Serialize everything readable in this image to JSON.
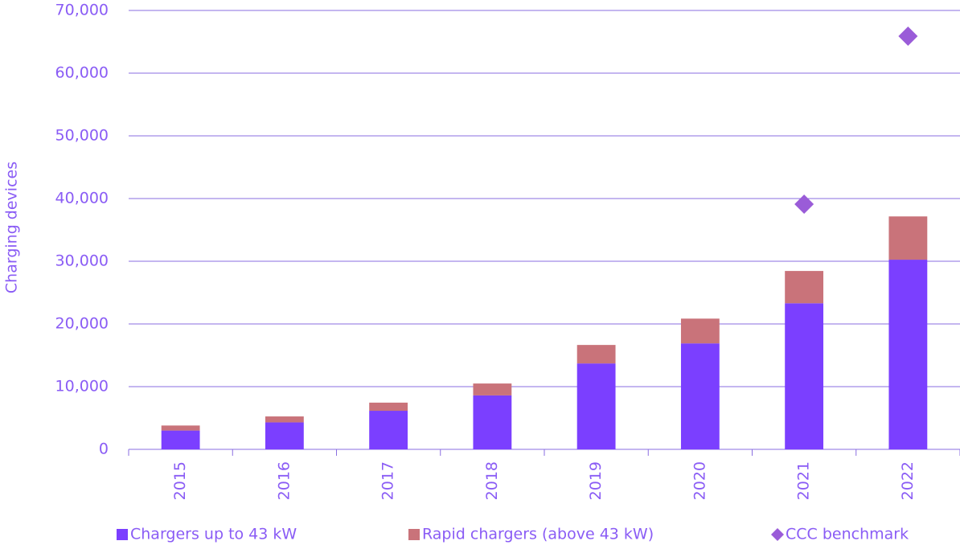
{
  "chart_data": {
    "type": "bar",
    "stacked": true,
    "y_label": "Charging devices",
    "categories": [
      "2015",
      "2016",
      "2017",
      "2018",
      "2019",
      "2020",
      "2021",
      "2022"
    ],
    "series": [
      {
        "name": "Chargers up to 43 kW",
        "type": "bar",
        "color": "#7b3fff",
        "values": [
          3000,
          4300,
          6150,
          8600,
          13700,
          16900,
          23300,
          30250
        ]
      },
      {
        "name": "Rapid chargers (above 43 kW)",
        "type": "bar",
        "color": "#c9737a",
        "values": [
          800,
          950,
          1300,
          1900,
          2950,
          3950,
          5150,
          6900
        ]
      },
      {
        "name": "CCC benchmark",
        "type": "scatter",
        "marker": "diamond",
        "color": "#9a5cd8",
        "values": [
          null,
          null,
          null,
          null,
          null,
          null,
          39100,
          65900
        ]
      }
    ],
    "ylim": [
      0,
      70000
    ],
    "yticks": [
      0,
      {
        "value": 10000,
        "label": "10,000"
      },
      {
        "value": 20000,
        "label": "20,000"
      },
      {
        "value": 30000,
        "label": "30,000"
      },
      {
        "value": 40000,
        "label": "40,000"
      },
      {
        "value": 50000,
        "label": "50,000"
      },
      {
        "value": 60000,
        "label": "60,000"
      },
      {
        "value": 70000,
        "label": "70,000"
      }
    ],
    "grid": true,
    "legend": "bottom"
  }
}
